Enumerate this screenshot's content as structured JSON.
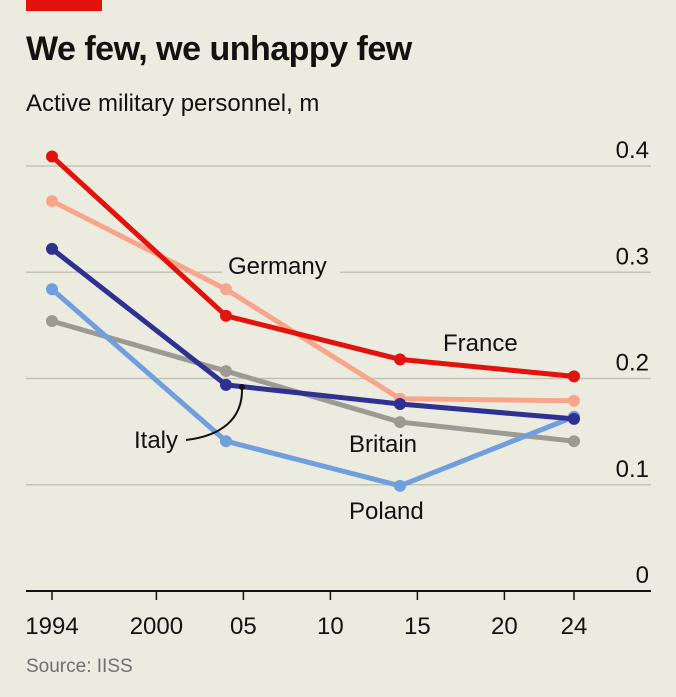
{
  "header": {
    "title": "We few, we unhappy few",
    "subtitle": "Active military personnel, m"
  },
  "footer": {
    "source": "Source: IISS"
  },
  "colors": {
    "background": "#ecebdf",
    "accent_bar": "#e3120b",
    "France": "#e3120b",
    "Germany": "#f9a58b",
    "Italy": "#2e3192",
    "Britain": "#9b9b93",
    "Poland": "#6f9fdc"
  },
  "chart_data": {
    "type": "line",
    "title": "We few, we unhappy few",
    "ylabel": "Active military personnel, m",
    "xlabel": "",
    "x": [
      1994,
      2004,
      2014,
      2024
    ],
    "xlim": [
      1994,
      2024
    ],
    "ylim": [
      0,
      0.4
    ],
    "x_ticks": [
      1994,
      2000,
      2005,
      2010,
      2015,
      2020,
      2024
    ],
    "x_tick_labels": [
      "1994",
      "2000",
      "05",
      "10",
      "15",
      "20",
      "24"
    ],
    "y_ticks": [
      0,
      0.1,
      0.2,
      0.3,
      0.4
    ],
    "y_tick_labels": [
      "0",
      "0.1",
      "0.2",
      "0.3",
      "0.4"
    ],
    "grid": true,
    "legend": "inline labels",
    "series": [
      {
        "name": "Britain",
        "values": [
          0.254,
          0.207,
          0.159,
          0.141
        ]
      },
      {
        "name": "Poland",
        "values": [
          0.284,
          0.141,
          0.099,
          0.164
        ]
      },
      {
        "name": "Germany",
        "values": [
          0.367,
          0.284,
          0.181,
          0.179
        ]
      },
      {
        "name": "Italy",
        "values": [
          0.322,
          0.194,
          0.176,
          0.162
        ]
      },
      {
        "name": "France",
        "values": [
          0.409,
          0.259,
          0.218,
          0.202
        ]
      }
    ]
  }
}
